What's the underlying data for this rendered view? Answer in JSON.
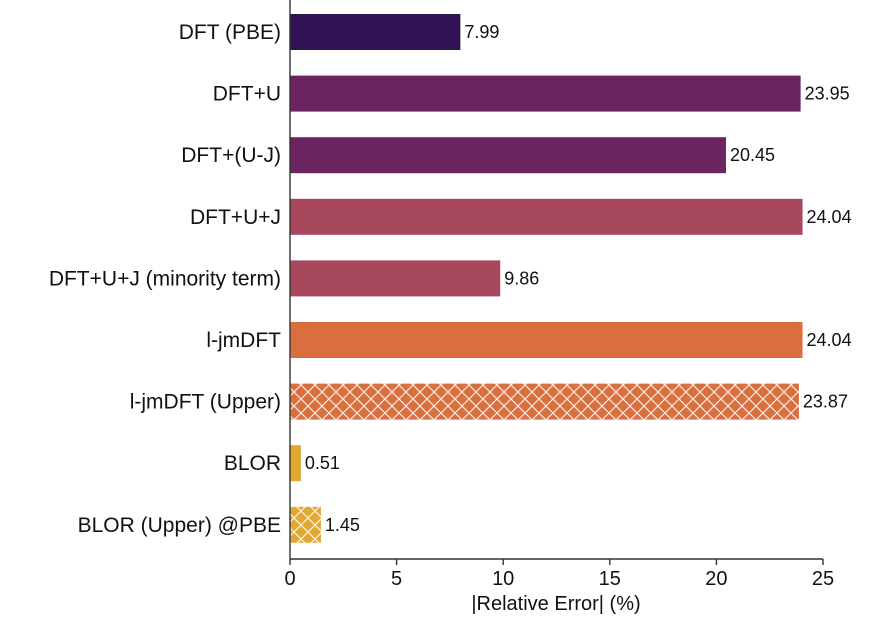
{
  "chart_data": {
    "type": "bar",
    "orientation": "horizontal",
    "title": "",
    "xlabel": "|Relative Error| (%)",
    "ylabel": "",
    "xlim": [
      0,
      25
    ],
    "xticks": [
      0,
      5,
      10,
      15,
      20,
      25
    ],
    "grid": false,
    "legend": "none",
    "categories": [
      "DFT (PBE)",
      "DFT+U",
      "DFT+(U-J)",
      "DFT+U+J",
      "DFT+U+J (minority term)",
      "l-jmDFT",
      "l-jmDFT (Upper)",
      "BLOR",
      "BLOR (Upper) @PBE"
    ],
    "values": [
      7.99,
      23.95,
      20.45,
      24.04,
      9.86,
      24.04,
      23.87,
      0.51,
      1.45
    ],
    "value_labels": [
      "7.99",
      "23.95",
      "20.45",
      "24.04",
      "9.86",
      "24.04",
      "23.87",
      "0.51",
      "1.45"
    ],
    "colors": [
      "#2f1352",
      "#6b2560",
      "#6b2560",
      "#a8485c",
      "#a8485c",
      "#d96f3f",
      "#d96f3f",
      "#e1a832",
      "#e1a832"
    ],
    "hatched": [
      false,
      false,
      false,
      false,
      false,
      false,
      true,
      false,
      true
    ]
  }
}
